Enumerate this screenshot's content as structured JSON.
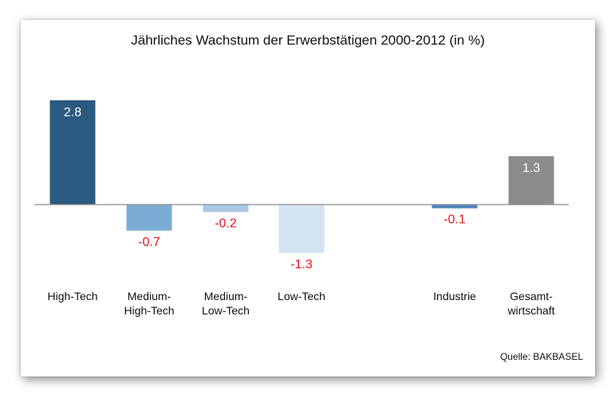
{
  "chart_data": {
    "type": "bar",
    "title": "Jährliches Wachstum der Erwerbstätigen 2000-2012 (in %)",
    "categories": [
      [
        "High-Tech"
      ],
      [
        "Medium-",
        "High-Tech"
      ],
      [
        "Medium-",
        "Low-Tech"
      ],
      [
        "Low-Tech"
      ],
      [
        "Industrie"
      ],
      [
        "Gesamt-",
        "wirtschaft"
      ]
    ],
    "values": [
      2.8,
      -0.7,
      -0.2,
      -1.3,
      -0.1,
      1.3
    ],
    "value_labels": [
      "2.8",
      "-0.7",
      "-0.2",
      "-1.3",
      "-0.1",
      "1.3"
    ],
    "colors": [
      "#2b5a80",
      "#7bacd5",
      "#a9c8e4",
      "#d3e3f1",
      "#4f86bf",
      "#8c8c8c"
    ],
    "positive_label_color": "#ffffff",
    "negative_label_color": "#e8161d",
    "xlabel": "",
    "ylabel": "",
    "grid": false,
    "source": "Quelle: BAKBASEL"
  }
}
